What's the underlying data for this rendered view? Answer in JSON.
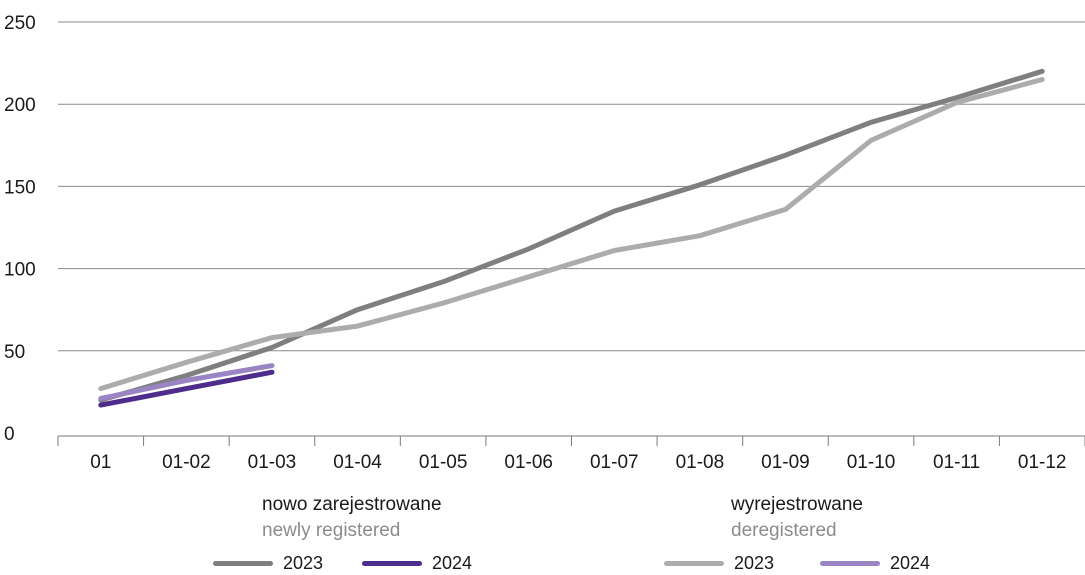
{
  "chart_data": {
    "type": "line",
    "categories": [
      "01",
      "01-02",
      "01-03",
      "01-04",
      "01-05",
      "01-06",
      "01-07",
      "01-08",
      "01-09",
      "01-10",
      "01-11",
      "01-12"
    ],
    "ylim": [
      0,
      250
    ],
    "yticks": [
      "0",
      "50",
      "100",
      "150",
      "200",
      "250"
    ],
    "grid": true,
    "legend_position": "bottom",
    "series": [
      {
        "group": "newly",
        "name": "2023",
        "color": "#7f7f80",
        "values": [
          20,
          35,
          52,
          75,
          92,
          112,
          135,
          151,
          169,
          189,
          204,
          220
        ]
      },
      {
        "group": "deregistered",
        "name": "2023",
        "color": "#acacad",
        "values": [
          27,
          43,
          58,
          65,
          79,
          95,
          111,
          120,
          136,
          178,
          201,
          215
        ]
      },
      {
        "group": "deregistered",
        "name": "2024",
        "color": "#9a85c4",
        "values": [
          21,
          32,
          41,
          null,
          null,
          null,
          null,
          null,
          null,
          null,
          null,
          null
        ]
      },
      {
        "group": "newly",
        "name": "2024",
        "color": "#4d2c8c",
        "values": [
          17,
          27,
          37,
          null,
          null,
          null,
          null,
          null,
          null,
          null,
          null,
          null
        ]
      }
    ]
  },
  "legend": {
    "newly": {
      "title_pl": "nowo zarejestrowane",
      "title_en": "newly registered",
      "items": [
        {
          "label": "2023",
          "color": "#7f7f80"
        },
        {
          "label": "2024",
          "color": "#4d2c8c"
        }
      ]
    },
    "deregistered": {
      "title_pl": "wyrejestrowane",
      "title_en": "deregistered",
      "items": [
        {
          "label": "2023",
          "color": "#acacad"
        },
        {
          "label": "2024",
          "color": "#9a85c4"
        }
      ]
    }
  }
}
